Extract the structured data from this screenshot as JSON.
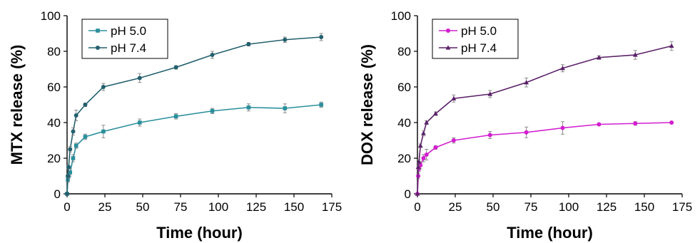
{
  "chart_data": [
    {
      "type": "line",
      "xlabel": "Time (hour)",
      "ylabel": "MTX release (%)",
      "xlim": [
        0,
        175
      ],
      "ylim": [
        0,
        100
      ],
      "xticks": [
        0,
        25,
        50,
        75,
        100,
        125,
        150,
        175
      ],
      "yticks": [
        0,
        20,
        40,
        60,
        80,
        100
      ],
      "grid": false,
      "legend_position": "top-left",
      "series": [
        {
          "name": "pH 5.0",
          "color": "#2a8f9c",
          "marker": "square",
          "x": [
            0,
            0.5,
            1,
            2,
            4,
            6,
            12,
            24,
            48,
            72,
            96,
            120,
            144,
            168
          ],
          "y": [
            0,
            8,
            10,
            12,
            20,
            27,
            32,
            35,
            40,
            43.5,
            46.5,
            48.5,
            48,
            50
          ],
          "error": [
            0,
            1.5,
            1.5,
            2,
            2,
            1.5,
            1.5,
            3.5,
            2,
            1.5,
            1.5,
            2,
            2.5,
            1.5
          ]
        },
        {
          "name": "pH 7.4",
          "color": "#23606e",
          "marker": "circle",
          "x": [
            0,
            0.5,
            1,
            2,
            4,
            6,
            12,
            24,
            48,
            72,
            96,
            120,
            144,
            168
          ],
          "y": [
            0,
            10,
            15,
            25,
            35,
            44,
            50,
            60,
            65,
            71,
            78,
            84,
            86.5,
            88
          ],
          "error": [
            0,
            1,
            1,
            1.5,
            2,
            3,
            1,
            2,
            2.5,
            1,
            2,
            1,
            1.5,
            2
          ]
        }
      ]
    },
    {
      "type": "line",
      "xlabel": "Time (hour)",
      "ylabel": "DOX release (%)",
      "xlim": [
        0,
        175
      ],
      "ylim": [
        0,
        100
      ],
      "xticks": [
        0,
        25,
        50,
        75,
        100,
        125,
        150,
        175
      ],
      "yticks": [
        0,
        20,
        40,
        60,
        80,
        100
      ],
      "grid": false,
      "legend_position": "top-left",
      "series": [
        {
          "name": "pH 5.0",
          "color": "#d21ecf",
          "marker": "circle",
          "x": [
            0,
            0.5,
            1,
            2,
            4,
            6,
            12,
            24,
            48,
            72,
            96,
            120,
            144,
            168
          ],
          "y": [
            0,
            10,
            14,
            16,
            20,
            22,
            26,
            30,
            33,
            34.5,
            37,
            39,
            39.5,
            40
          ],
          "error": [
            0,
            1.5,
            1.5,
            2,
            2,
            3,
            1,
            1.5,
            2,
            3,
            3.5,
            0.5,
            1,
            0.5
          ]
        },
        {
          "name": "pH 7.4",
          "color": "#5b2069",
          "marker": "triangle",
          "x": [
            0,
            0.5,
            1,
            2,
            4,
            6,
            12,
            24,
            48,
            72,
            96,
            120,
            144,
            168
          ],
          "y": [
            0,
            15,
            18,
            27,
            34,
            40,
            45,
            53.5,
            56,
            62.5,
            70.5,
            76.5,
            78,
            83
          ],
          "error": [
            0,
            1,
            1,
            1,
            1.5,
            1,
            1,
            2,
            2,
            2.5,
            2,
            1,
            2.5,
            2.5
          ]
        }
      ]
    }
  ]
}
